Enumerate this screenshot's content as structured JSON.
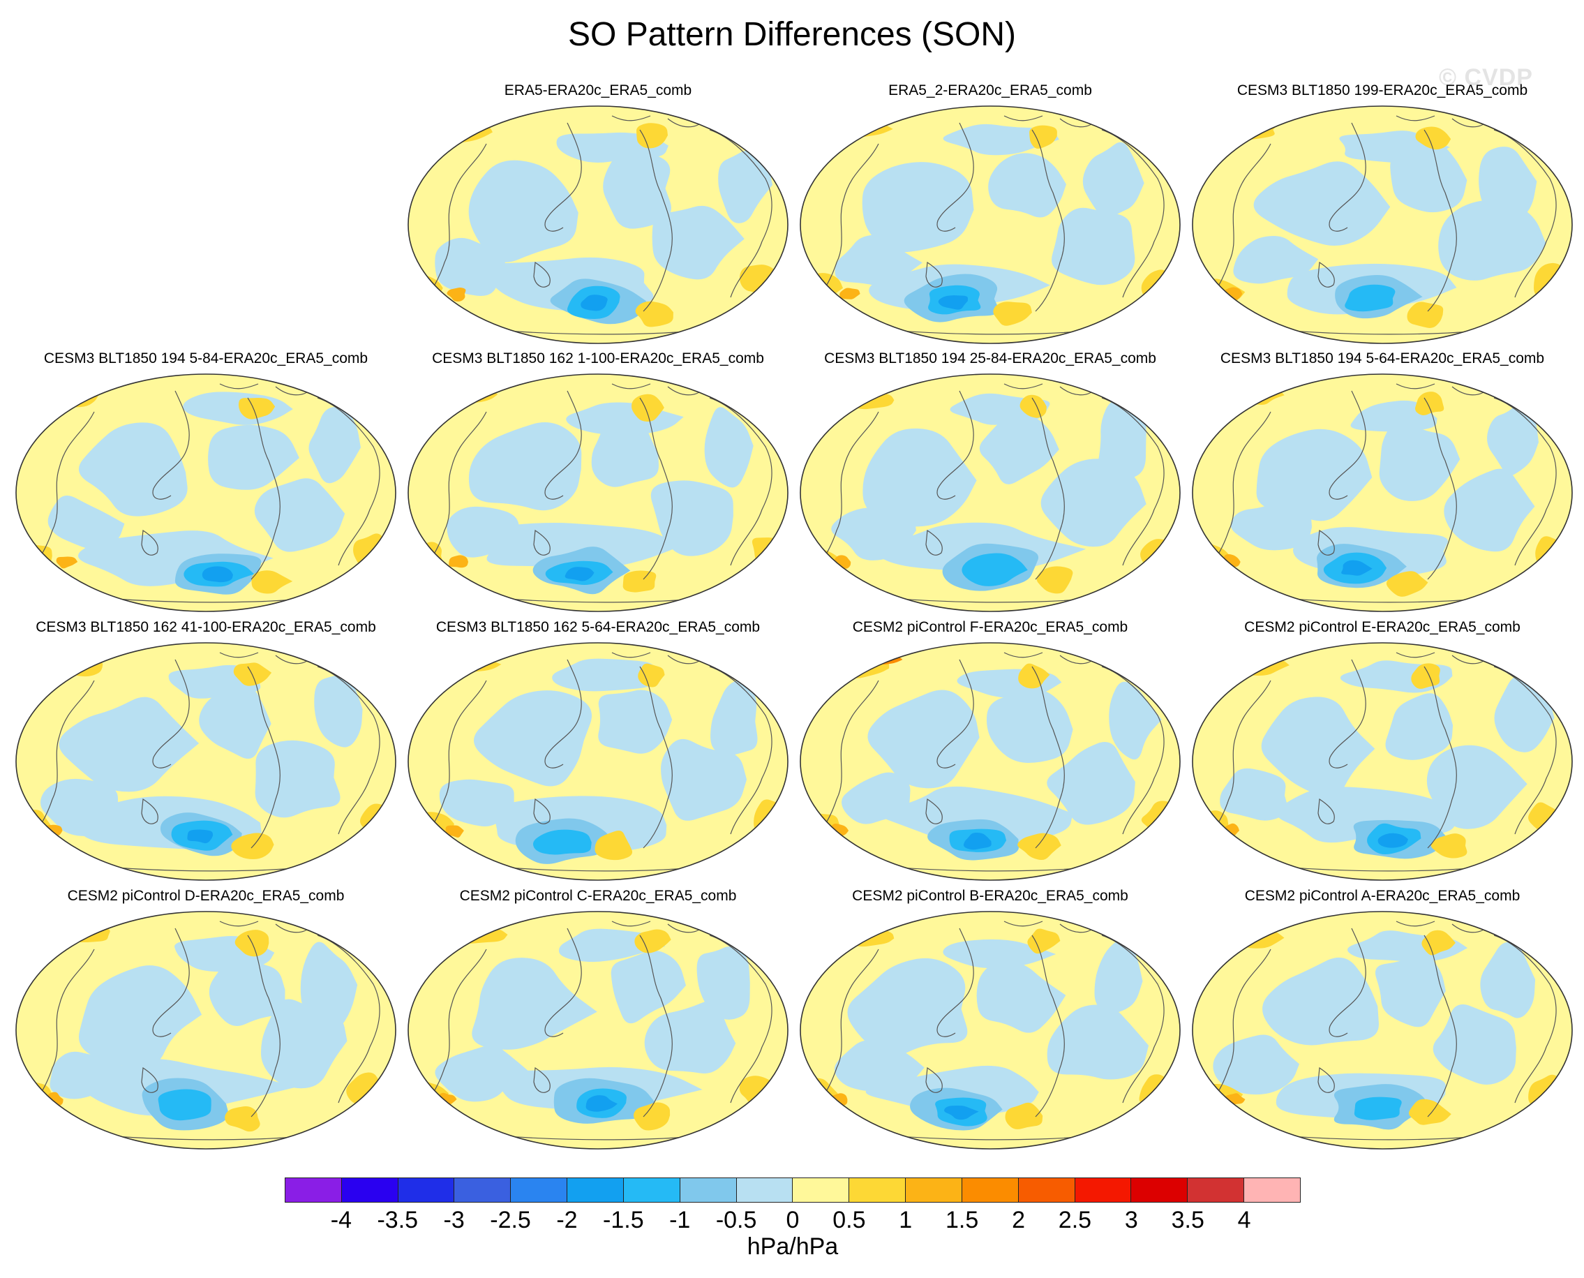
{
  "figure": {
    "title": "SO Pattern Differences (SON)",
    "watermark": "© CVDP"
  },
  "panels": [
    {
      "title": "ERA5-ERA20c_ERA5_comb"
    },
    {
      "title": "ERA5_2-ERA20c_ERA5_comb"
    },
    {
      "title": "CESM3 BLT1850 199-ERA20c_ERA5_comb"
    },
    {
      "title": "CESM3 BLT1850 194 5-84-ERA20c_ERA5_comb"
    },
    {
      "title": "CESM3 BLT1850 162 1-100-ERA20c_ERA5_comb"
    },
    {
      "title": "CESM3 BLT1850 194 25-84-ERA20c_ERA5_comb"
    },
    {
      "title": "CESM3 BLT1850 194 5-64-ERA20c_ERA5_comb"
    },
    {
      "title": "CESM3 BLT1850 162 41-100-ERA20c_ERA5_comb"
    },
    {
      "title": "CESM3 BLT1850 162 5-64-ERA20c_ERA5_comb"
    },
    {
      "title": "CESM2 piControl F-ERA20c_ERA5_comb"
    },
    {
      "title": "CESM2 piControl E-ERA20c_ERA5_comb"
    },
    {
      "title": "CESM2 piControl D-ERA20c_ERA5_comb"
    },
    {
      "title": "CESM2 piControl C-ERA20c_ERA5_comb"
    },
    {
      "title": "CESM2 piControl B-ERA20c_ERA5_comb"
    },
    {
      "title": "CESM2 piControl A-ERA20c_ERA5_comb"
    }
  ],
  "colorbar": {
    "units": "hPa/hPa",
    "tick_labels": [
      "-4",
      "-3.5",
      "-3",
      "-2.5",
      "-2",
      "-1.5",
      "-1",
      "-0.5",
      "0",
      "0.5",
      "1",
      "1.5",
      "2",
      "2.5",
      "3",
      "3.5",
      "4"
    ],
    "colors": [
      "#8a1ee6",
      "#2a00f0",
      "#1f2ee8",
      "#3a60e0",
      "#2a84f0",
      "#12a0f0",
      "#25baf5",
      "#80c8ec",
      "#b8e0f2",
      "#fff89a",
      "#fdd835",
      "#fcb316",
      "#fb8c00",
      "#f75c00",
      "#f41800",
      "#dc0000",
      "#d23232",
      "#ffb4b4"
    ]
  },
  "colors": {
    "land_outline": "#555555",
    "map_border": "#333333"
  }
}
